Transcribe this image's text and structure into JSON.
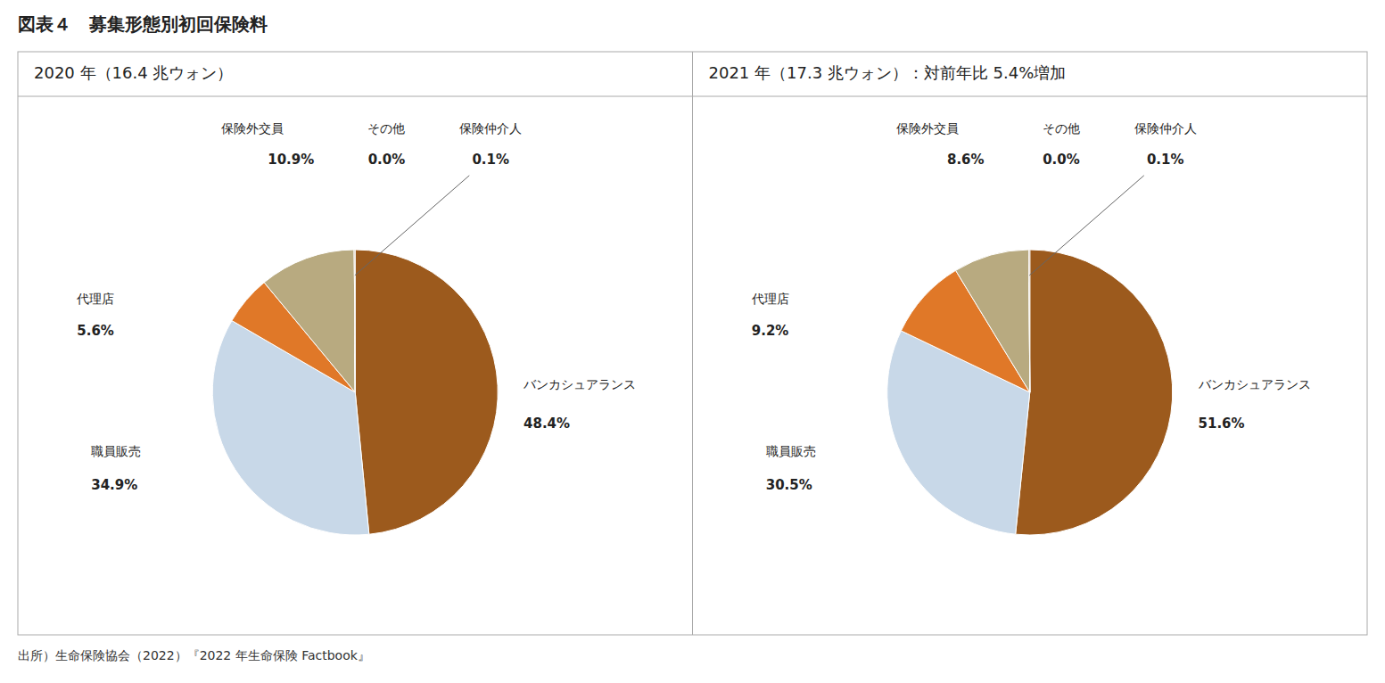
{
  "chart_data": [
    {
      "type": "pie",
      "title": "図表４　募集形態別初回保険料",
      "subtitle": "2020 年（16.4 兆ウォン）",
      "annotations": [
        "出所）生命保険協会（2022）『2022 年生命保険 Factbook』"
      ],
      "categories": [
        "バンカシュアランス",
        "職員販売",
        "代理店",
        "保険外交員",
        "その他",
        "保険仲介人"
      ],
      "values": [
        48.4,
        34.9,
        5.6,
        10.9,
        0.0,
        0.1
      ],
      "value_labels": [
        "48.4%",
        "34.9%",
        "5.6%",
        "10.9%",
        "0.0%",
        "0.1%"
      ],
      "colors": [
        "#9C5A1D",
        "#C8D8E8",
        "#E07828",
        "#B8AA80",
        "#C0B890",
        "#7A4010"
      ],
      "data_labels": true
    },
    {
      "type": "pie",
      "subtitle": "2021 年（17.3 兆ウォン）：対前年比 5.4%増加",
      "categories": [
        "バンカシュアランス",
        "職員販売",
        "代理店",
        "保険外交員",
        "その他",
        "保険仲介人"
      ],
      "values": [
        51.6,
        30.5,
        9.2,
        8.6,
        0.0,
        0.1
      ],
      "value_labels": [
        "51.6%",
        "30.5%",
        "9.2%",
        "8.6%",
        "0.0%",
        "0.1%"
      ],
      "colors": [
        "#9C5A1D",
        "#C8D8E8",
        "#E07828",
        "#B8AA80",
        "#C0B890",
        "#7A4010"
      ],
      "data_labels": true
    }
  ]
}
